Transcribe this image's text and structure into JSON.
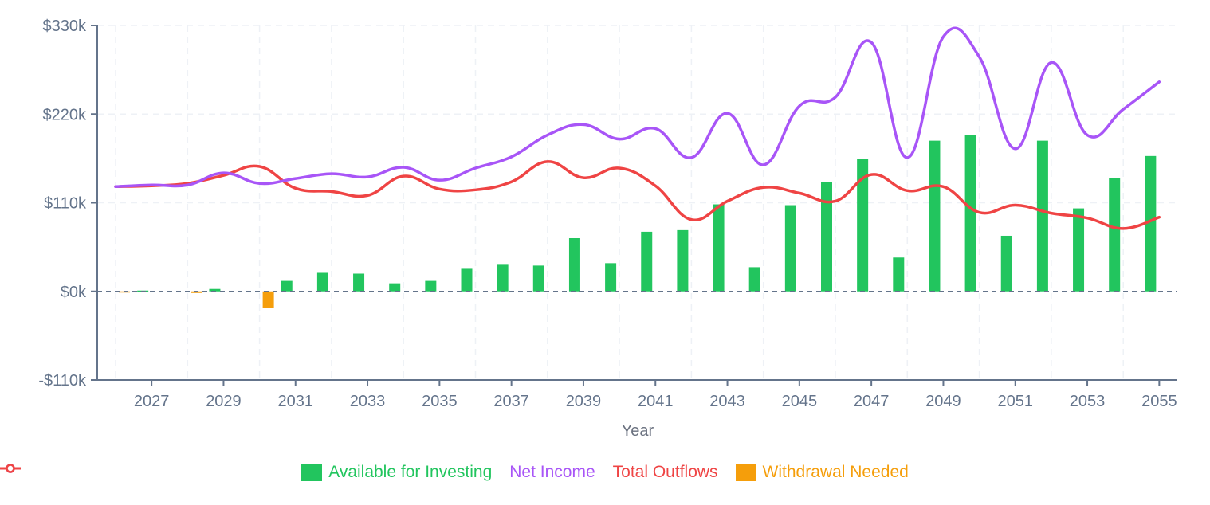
{
  "chart_data": {
    "type": "bar+line",
    "title": "",
    "xlabel": "Year",
    "ylabel": "",
    "ylim": [
      -110,
      330
    ],
    "y_unit": "$k",
    "yticks": [
      "$330k",
      "$220k",
      "$110k",
      "$0k",
      "-$110k"
    ],
    "ytick_values": [
      330,
      220,
      110,
      0,
      -110
    ],
    "xticks": [
      "2027",
      "2029",
      "2031",
      "2033",
      "2035",
      "2037",
      "2039",
      "2041",
      "2043",
      "2045",
      "2047",
      "2049",
      "2051",
      "2053",
      "2055"
    ],
    "grid": true,
    "legend_position": "bottom",
    "categories": [
      2026,
      2027,
      2028,
      2029,
      2030,
      2031,
      2032,
      2033,
      2034,
      2035,
      2036,
      2037,
      2038,
      2039,
      2040,
      2041,
      2042,
      2043,
      2044,
      2045,
      2046,
      2047,
      2048,
      2049,
      2050,
      2051,
      2052,
      2053,
      2054,
      2055
    ],
    "series": [
      {
        "name": "Available for Investing",
        "type": "bar",
        "color": "#22c55e",
        "values": [
          0,
          1,
          0,
          3,
          0,
          13,
          23,
          22,
          10,
          13,
          28,
          33,
          32,
          66,
          35,
          74,
          76,
          108,
          30,
          107,
          136,
          164,
          42,
          187,
          194,
          69,
          187,
          103,
          141,
          168
        ]
      },
      {
        "name": "Net Income",
        "type": "line",
        "color": "#a855f7",
        "values": [
          130,
          132,
          132,
          147,
          134,
          140,
          146,
          142,
          154,
          138,
          153,
          167,
          194,
          207,
          189,
          202,
          166,
          221,
          157,
          230,
          241,
          309,
          166,
          316,
          291,
          177,
          284,
          194,
          226,
          260
        ]
      },
      {
        "name": "Total Outflows",
        "type": "line",
        "color": "#ef4444",
        "values": [
          130,
          131,
          134,
          144,
          155,
          128,
          124,
          119,
          143,
          127,
          126,
          136,
          161,
          141,
          153,
          131,
          89,
          112,
          129,
          122,
          112,
          145,
          125,
          130,
          98,
          107,
          97,
          91,
          78,
          92
        ]
      },
      {
        "name": "Withdrawal Needed",
        "type": "bar",
        "color": "#f59e0b",
        "values": [
          -0.5,
          0,
          -2,
          0,
          -21,
          0,
          0,
          0,
          0,
          0,
          0,
          0,
          0,
          0,
          0,
          0,
          0,
          0,
          0,
          0,
          0,
          0,
          0,
          0,
          0,
          0,
          0,
          0,
          0,
          0
        ]
      }
    ]
  },
  "legend": {
    "items": [
      {
        "label": "Available for Investing",
        "color": "#22c55e",
        "shape": "rect"
      },
      {
        "label": "Net Income",
        "color": "#a855f7",
        "shape": "line-circle"
      },
      {
        "label": "Total Outflows",
        "color": "#ef4444",
        "shape": "line-circle"
      },
      {
        "label": "Withdrawal Needed",
        "color": "#f59e0b",
        "shape": "rect"
      }
    ]
  },
  "colors": {
    "axis": "#64748b",
    "grid": "#eef1f6",
    "zero_line": "#64748b"
  }
}
